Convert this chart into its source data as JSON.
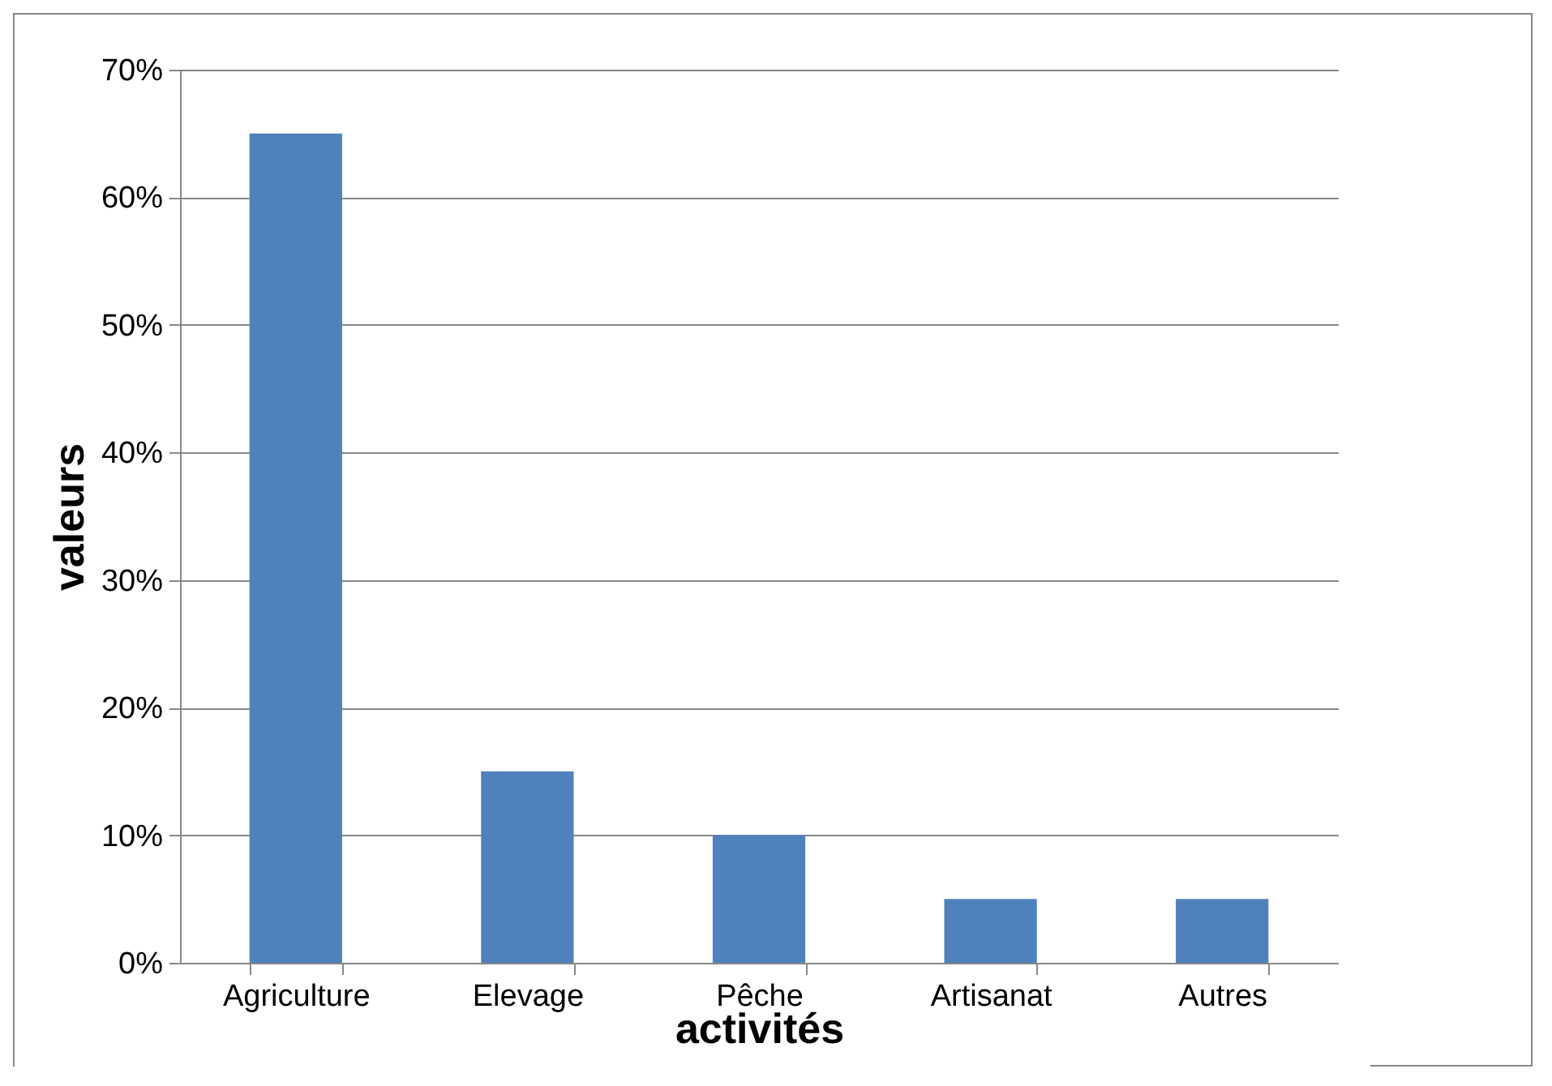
{
  "chart_data": {
    "type": "bar",
    "xlabel": "activités",
    "ylabel": "valeurs",
    "categories": [
      "Agriculture",
      "Elevage",
      "Pêche",
      "Artisanat",
      "Autres"
    ],
    "values": [
      65,
      15,
      10,
      5,
      5
    ],
    "color": "#4f81bd",
    "ylim": [
      0,
      70
    ],
    "yticks": [
      {
        "value": 0,
        "label": "0%"
      },
      {
        "value": 10,
        "label": "10%"
      },
      {
        "value": 20,
        "label": "20%"
      },
      {
        "value": 30,
        "label": "30%"
      },
      {
        "value": 40,
        "label": "40%"
      },
      {
        "value": 50,
        "label": "50%"
      },
      {
        "value": 60,
        "label": "60%"
      },
      {
        "value": 70,
        "label": "70%"
      }
    ],
    "grid": "y"
  }
}
